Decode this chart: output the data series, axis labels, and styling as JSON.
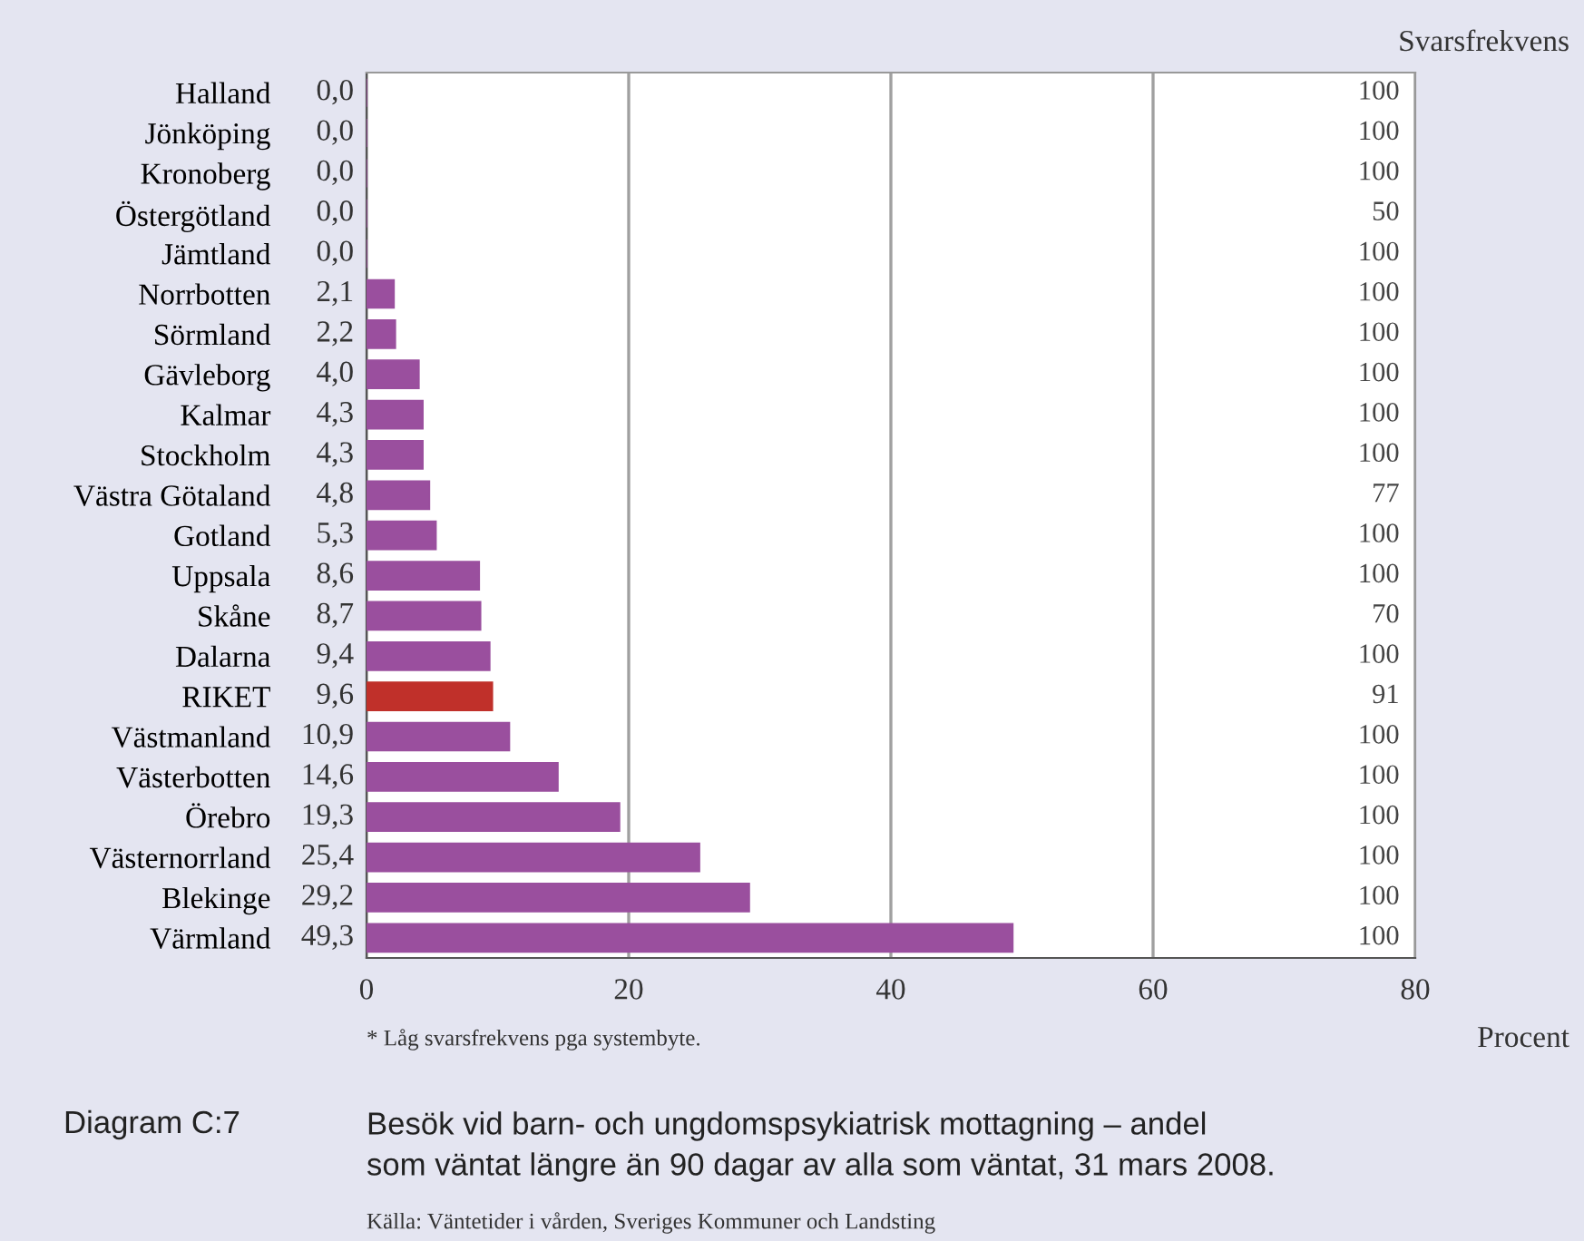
{
  "chart_data": {
    "type": "bar",
    "orientation": "horizontal",
    "title": "Diagram C:7",
    "subtitle": "Besök vid barn- och ungdomspsykiatrisk mottagning – andel\nsom väntat längre än 90 dagar av alla som väntat, 31 mars 2008.",
    "xlabel": "Procent",
    "categories": [
      "Halland",
      "Jönköping",
      "Kronoberg",
      "Östergötland",
      "Jämtland",
      "Norrbotten",
      "Sörmland",
      "Gävleborg",
      "Kalmar",
      "Stockholm",
      "Västra Götaland",
      "Gotland",
      "Uppsala",
      "Skåne",
      "Dalarna",
      "RIKET",
      "Västmanland",
      "Västerbotten",
      "Örebro",
      "Västernorrland",
      "Blekinge",
      "Värmland"
    ],
    "values": [
      0.0,
      0.0,
      0.0,
      0.0,
      0.0,
      2.1,
      2.2,
      4.0,
      4.3,
      4.3,
      4.8,
      5.3,
      8.6,
      8.7,
      9.4,
      9.6,
      10.9,
      14.6,
      19.3,
      25.4,
      29.2,
      49.3
    ],
    "value_labels": [
      "0,0",
      "0,0",
      "0,0",
      "0,0",
      "0,0",
      "2,1",
      "2,2",
      "4,0",
      "4,3",
      "4,3",
      "4,8",
      "5,3",
      "8,6",
      "8,7",
      "9,4",
      "9,6",
      "10,9",
      "14,6",
      "19,3",
      "25,4",
      "29,2",
      "49,3"
    ],
    "colors": [
      "#9a4f9e",
      "#9a4f9e",
      "#9a4f9e",
      "#9a4f9e",
      "#9a4f9e",
      "#9a4f9e",
      "#9a4f9e",
      "#9a4f9e",
      "#9a4f9e",
      "#9a4f9e",
      "#9a4f9e",
      "#9a4f9e",
      "#9a4f9e",
      "#9a4f9e",
      "#9a4f9e",
      "#c0302a",
      "#9a4f9e",
      "#9a4f9e",
      "#9a4f9e",
      "#9a4f9e",
      "#9a4f9e",
      "#9a4f9e"
    ],
    "xlim": [
      0,
      80
    ],
    "xticks": [
      0,
      20,
      40,
      60,
      80
    ],
    "grid": "x",
    "annotations": [
      "* Låg svarsfrekvens pga systembyte.",
      "Källa: Väntetider i vården, Sveriges Kommuner och Landsting",
      "Svarsfrekvens",
      "100",
      "100",
      "100",
      "50",
      "100",
      "100",
      "100",
      "100",
      "100",
      "100",
      "77",
      "100",
      "100",
      "70",
      "100",
      "91",
      "100",
      "100",
      "100",
      "100",
      "100",
      "100"
    ]
  }
}
